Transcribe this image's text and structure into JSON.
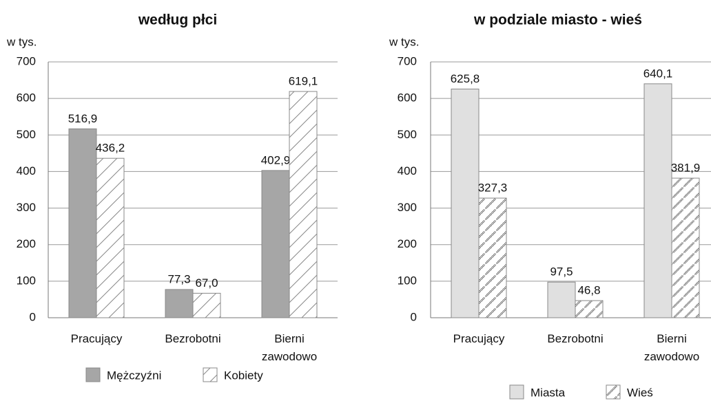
{
  "chart_data": [
    {
      "type": "bar",
      "title": "według płci",
      "y_label": "w tys.",
      "categories": [
        "Pracujący",
        "Bezrobotni",
        "Bierni zawodowo"
      ],
      "series": [
        {
          "name": "Mężczyźni",
          "color": "#a6a6a6",
          "pattern": "solid",
          "values": [
            516.9,
            77.3,
            402.9
          ],
          "value_labels": [
            "516,9",
            "77,3",
            "402,9"
          ]
        },
        {
          "name": "Kobiety",
          "color": "#ffffff",
          "pattern": "hatch",
          "values": [
            436.2,
            67.0,
            619.1
          ],
          "value_labels": [
            "436,2",
            "67,0",
            "619,1"
          ]
        }
      ],
      "ylim": [
        0,
        700
      ],
      "yticks": [
        0,
        100,
        200,
        300,
        400,
        500,
        600,
        700
      ],
      "grid": true,
      "legend": "bottom"
    },
    {
      "type": "bar",
      "title": "w podziale miasto - wieś",
      "y_label": "w tys.",
      "categories": [
        "Pracujący",
        "Bezrobotni",
        "Bierni zawodowo"
      ],
      "series": [
        {
          "name": "Miasta",
          "color": "#e0e0e0",
          "pattern": "solid",
          "values": [
            625.8,
            97.5,
            640.1
          ],
          "value_labels": [
            "625,8",
            "97,5",
            "640,1"
          ]
        },
        {
          "name": "Wieś",
          "color": "#ffffff",
          "pattern": "dots",
          "values": [
            327.3,
            46.8,
            381.9
          ],
          "value_labels": [
            "327,3",
            "46,8",
            "381,9"
          ]
        }
      ],
      "ylim": [
        0,
        700
      ],
      "yticks": [
        0,
        100,
        200,
        300,
        400,
        500,
        600,
        700
      ],
      "grid": true,
      "legend": "bottom"
    }
  ]
}
